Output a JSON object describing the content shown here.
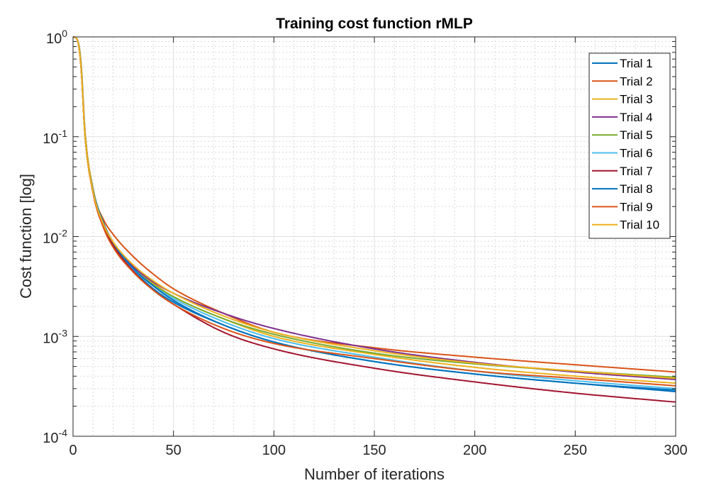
{
  "chart_data": {
    "type": "line",
    "title": "Training cost function rMLP",
    "xlabel": "Number of iterations",
    "ylabel": "Cost function [log]",
    "xlim": [
      0,
      300
    ],
    "ylim": [
      0.0001,
      1
    ],
    "yscale": "log",
    "grid": true,
    "minor_grid": true,
    "legend_position": "top-right",
    "xticks": [
      0,
      50,
      100,
      150,
      200,
      250,
      300
    ],
    "xtick_labels": [
      "0",
      "50",
      "100",
      "150",
      "200",
      "250",
      "300"
    ],
    "yticks": [
      1,
      0.1,
      0.01,
      0.001,
      0.0001
    ],
    "ytick_labels": [
      {
        "base": "10",
        "exp": "0"
      },
      {
        "base": "10",
        "exp": "-1"
      },
      {
        "base": "10",
        "exp": "-2"
      },
      {
        "base": "10",
        "exp": "-3"
      },
      {
        "base": "10",
        "exp": "-4"
      }
    ],
    "x": [
      0,
      2,
      4,
      6,
      10,
      15,
      20,
      30,
      40,
      50,
      75,
      100,
      150,
      200,
      250,
      300
    ],
    "series": [
      {
        "name": "Trial 1",
        "color": "#0072BD",
        "values": [
          1.0,
          0.95,
          0.55,
          0.11,
          0.03,
          0.014,
          0.0085,
          0.0046,
          0.003,
          0.0022,
          0.0013,
          0.00088,
          0.00056,
          0.00042,
          0.00034,
          0.00028
        ]
      },
      {
        "name": "Trial 2",
        "color": "#D95319",
        "values": [
          1.0,
          0.95,
          0.5,
          0.1,
          0.028,
          0.015,
          0.0105,
          0.0063,
          0.0042,
          0.003,
          0.0017,
          0.0011,
          0.00077,
          0.00062,
          0.00052,
          0.00044
        ]
      },
      {
        "name": "Trial 3",
        "color": "#EDB120",
        "values": [
          1.0,
          0.95,
          0.55,
          0.11,
          0.03,
          0.014,
          0.0088,
          0.0051,
          0.0034,
          0.0025,
          0.0015,
          0.001,
          0.00066,
          0.00049,
          0.0004,
          0.00034
        ]
      },
      {
        "name": "Trial 4",
        "color": "#7E2F8E",
        "values": [
          1.0,
          0.95,
          0.5,
          0.1,
          0.028,
          0.013,
          0.0085,
          0.005,
          0.0035,
          0.0027,
          0.0017,
          0.0012,
          0.00075,
          0.00055,
          0.00044,
          0.00037
        ]
      },
      {
        "name": "Trial 5",
        "color": "#77AC30",
        "values": [
          1.0,
          0.95,
          0.5,
          0.1,
          0.028,
          0.013,
          0.0083,
          0.0048,
          0.0033,
          0.0025,
          0.0015,
          0.00105,
          0.00068,
          0.00053,
          0.00045,
          0.00039
        ]
      },
      {
        "name": "Trial 6",
        "color": "#4DBEEE",
        "values": [
          1.0,
          0.95,
          0.5,
          0.1,
          0.028,
          0.013,
          0.0082,
          0.0047,
          0.0032,
          0.0024,
          0.0014,
          0.00095,
          0.00062,
          0.00045,
          0.00036,
          0.0003
        ]
      },
      {
        "name": "Trial 7",
        "color": "#A2142F",
        "values": [
          1.0,
          0.95,
          0.5,
          0.1,
          0.028,
          0.013,
          0.0082,
          0.0045,
          0.0029,
          0.0021,
          0.0011,
          0.00075,
          0.00048,
          0.00035,
          0.00027,
          0.00022
        ]
      },
      {
        "name": "Trial 8",
        "color": "#0072BD",
        "values": [
          1.0,
          0.95,
          0.52,
          0.1,
          0.029,
          0.014,
          0.0087,
          0.0048,
          0.0032,
          0.0023,
          0.0013,
          0.00088,
          0.00056,
          0.00042,
          0.00034,
          0.00029
        ]
      },
      {
        "name": "Trial 9",
        "color": "#D95319",
        "values": [
          1.0,
          0.95,
          0.5,
          0.1,
          0.027,
          0.0125,
          0.0078,
          0.0044,
          0.0029,
          0.0021,
          0.0012,
          0.00085,
          0.0006,
          0.00045,
          0.00038,
          0.00032
        ]
      },
      {
        "name": "Trial 10",
        "color": "#EDB120",
        "values": [
          1.0,
          0.95,
          0.5,
          0.1,
          0.028,
          0.0135,
          0.0088,
          0.0052,
          0.0036,
          0.0027,
          0.0016,
          0.0011,
          0.00072,
          0.00054,
          0.00045,
          0.00038
        ]
      }
    ]
  }
}
